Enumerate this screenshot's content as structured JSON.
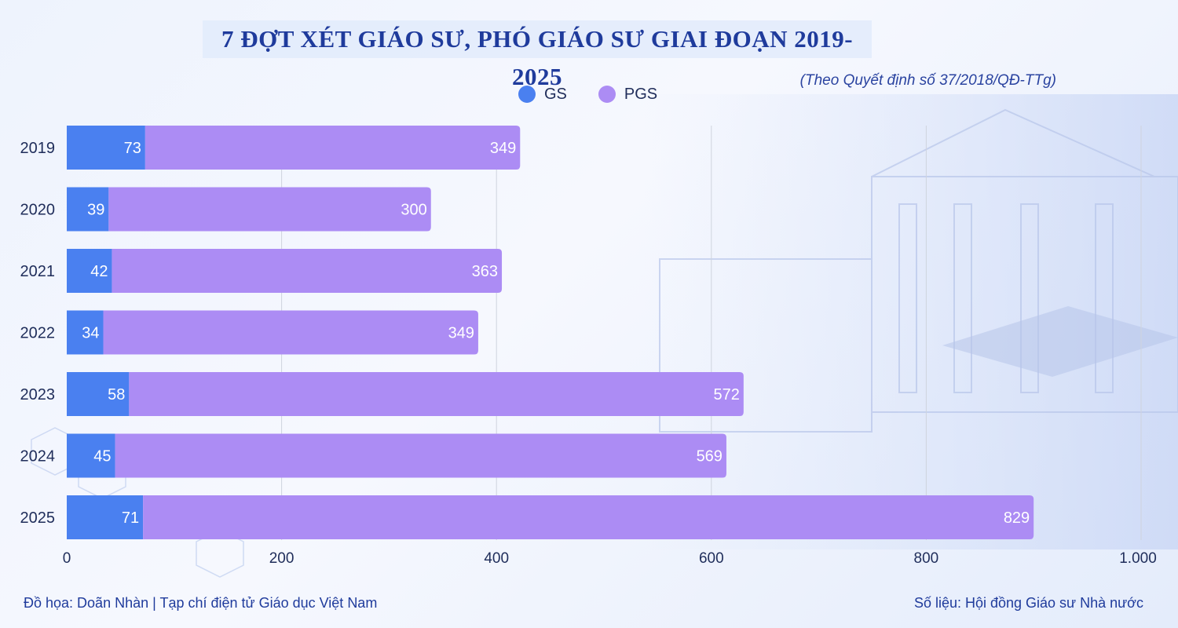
{
  "title": "7 ĐỢT XÉT GIÁO SƯ, PHÓ GIÁO SƯ GIAI ĐOẠN 2019-2025",
  "source_note": "(Theo Quyết định số 37/2018/QĐ-TTg)",
  "footer": {
    "credit": "Đồ họa: Doãn Nhàn | Tạp chí điện tử Giáo dục Việt Nam",
    "source": "Số liệu: Hội đồng Giáo sư Nhà nước"
  },
  "colors": {
    "gs": "#4a80f0",
    "pgs": "#ac8cf4",
    "grid": "#cfd4de"
  },
  "chart_data": {
    "type": "bar",
    "orientation": "horizontal",
    "stacked": true,
    "categories": [
      "2019",
      "2020",
      "2021",
      "2022",
      "2023",
      "2024",
      "2025"
    ],
    "series": [
      {
        "name": "GS",
        "values": [
          73,
          39,
          42,
          34,
          58,
          45,
          71
        ]
      },
      {
        "name": "PGS",
        "values": [
          349,
          300,
          363,
          349,
          572,
          569,
          829
        ]
      }
    ],
    "xlim": [
      0,
      1000
    ],
    "xticks": [
      0,
      200,
      400,
      600,
      800,
      1000
    ],
    "xtick_labels": [
      "0",
      "200",
      "400",
      "600",
      "800",
      "1.000"
    ],
    "grid": "vertical",
    "legend": "top"
  }
}
